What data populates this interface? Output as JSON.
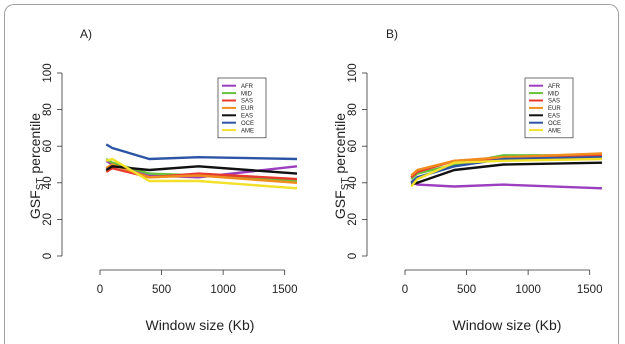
{
  "chart_data": [
    {
      "type": "line",
      "panel": "A)",
      "xlabel": "Window size (Kb)",
      "ylabel_main": "GSF",
      "ylabel_sub": "ST",
      "ylabel_tail": " percentile",
      "xticks": [
        0,
        500,
        1000,
        1500
      ],
      "yticks": [
        0,
        20,
        40,
        60,
        80,
        100
      ],
      "xlim": [
        0,
        1600
      ],
      "ylim": [
        0,
        100
      ],
      "legend_position": "top-right",
      "series": [
        {
          "name": "AFR",
          "color": "#9b3fbf",
          "x": [
            50,
            100,
            400,
            800,
            1600
          ],
          "y": [
            52,
            50,
            44,
            43,
            49
          ]
        },
        {
          "name": "MID",
          "color": "#66c23a",
          "x": [
            50,
            100,
            400,
            800,
            1600
          ],
          "y": [
            53,
            51,
            45,
            44,
            41
          ]
        },
        {
          "name": "SAS",
          "color": "#e83a2e",
          "x": [
            50,
            100,
            400,
            800,
            1600
          ],
          "y": [
            46,
            48,
            43,
            45,
            42
          ]
        },
        {
          "name": "EUR",
          "color": "#f08c1e",
          "x": [
            50,
            100,
            400,
            800,
            1600
          ],
          "y": [
            48,
            50,
            43,
            44,
            40
          ]
        },
        {
          "name": "EAS",
          "color": "#111111",
          "x": [
            50,
            100,
            400,
            800,
            1600
          ],
          "y": [
            47,
            49,
            47,
            49,
            45
          ]
        },
        {
          "name": "OCE",
          "color": "#2d55a5",
          "x": [
            50,
            100,
            400,
            800,
            1600
          ],
          "y": [
            61,
            59,
            53,
            54,
            53
          ]
        },
        {
          "name": "AME",
          "color": "#f2e02a",
          "x": [
            50,
            100,
            400,
            800,
            1600
          ],
          "y": [
            52,
            53,
            41,
            41,
            37
          ]
        }
      ]
    },
    {
      "type": "line",
      "panel": "B)",
      "xlabel": "Window size (Kb)",
      "ylabel_main": "GSF",
      "ylabel_sub": "ST",
      "ylabel_tail": " percentile",
      "xticks": [
        0,
        500,
        1000,
        1500
      ],
      "yticks": [
        0,
        20,
        40,
        60,
        80,
        100
      ],
      "xlim": [
        0,
        1600
      ],
      "ylim": [
        0,
        100
      ],
      "legend_position": "top-right",
      "series": [
        {
          "name": "AFR",
          "color": "#9b3fbf",
          "x": [
            50,
            100,
            400,
            800,
            1600
          ],
          "y": [
            41,
            39,
            38,
            39,
            37
          ]
        },
        {
          "name": "MID",
          "color": "#66c23a",
          "x": [
            50,
            100,
            400,
            800,
            1600
          ],
          "y": [
            42,
            45,
            50,
            55,
            55
          ]
        },
        {
          "name": "SAS",
          "color": "#e83a2e",
          "x": [
            50,
            100,
            400,
            800,
            1600
          ],
          "y": [
            43,
            46,
            52,
            53,
            55
          ]
        },
        {
          "name": "EUR",
          "color": "#f08c1e",
          "x": [
            50,
            100,
            400,
            800,
            1600
          ],
          "y": [
            44,
            47,
            52,
            54,
            56
          ]
        },
        {
          "name": "EAS",
          "color": "#111111",
          "x": [
            50,
            100,
            400,
            800,
            1600
          ],
          "y": [
            39,
            40,
            47,
            50,
            51
          ]
        },
        {
          "name": "OCE",
          "color": "#2d55a5",
          "x": [
            50,
            100,
            400,
            800,
            1600
          ],
          "y": [
            40,
            43,
            49,
            53,
            54
          ]
        },
        {
          "name": "AME",
          "color": "#f2e02a",
          "x": [
            50,
            100,
            400,
            800,
            1600
          ],
          "y": [
            38,
            42,
            51,
            52,
            53
          ]
        }
      ]
    }
  ]
}
